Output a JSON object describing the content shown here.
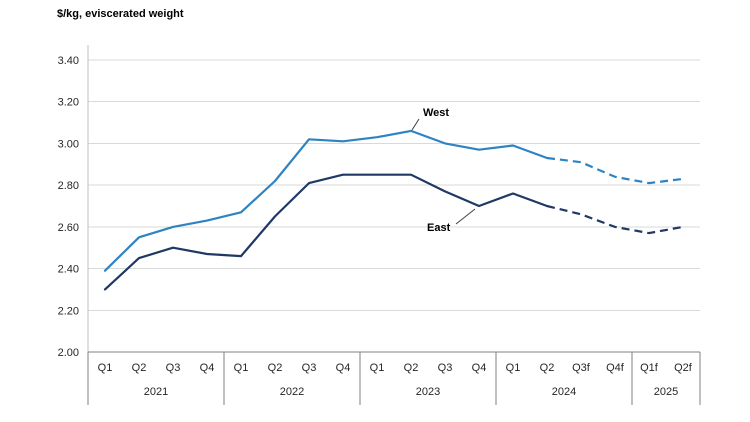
{
  "chart_data": {
    "type": "line",
    "ylabel": "$/kg, eviscerated weight",
    "x": [
      "Q1",
      "Q2",
      "Q3",
      "Q4",
      "Q1",
      "Q2",
      "Q3",
      "Q4",
      "Q1",
      "Q2",
      "Q3",
      "Q4",
      "Q1",
      "Q2",
      "Q3f",
      "Q4f",
      "Q1f",
      "Q2f"
    ],
    "year_groups": [
      {
        "label": "2021",
        "count": 4
      },
      {
        "label": "2022",
        "count": 4
      },
      {
        "label": "2023",
        "count": 4
      },
      {
        "label": "2024",
        "count": 4
      },
      {
        "label": "2025",
        "count": 2
      }
    ],
    "series": [
      {
        "name": "West",
        "color": "#2E83C3",
        "forecast_start_index": 13,
        "values": [
          2.39,
          2.55,
          2.6,
          2.63,
          2.67,
          2.82,
          3.02,
          3.01,
          3.03,
          3.06,
          3.0,
          2.97,
          2.99,
          2.93,
          2.91,
          2.84,
          2.81,
          2.83
        ]
      },
      {
        "name": "East",
        "color": "#1F3864",
        "forecast_start_index": 13,
        "values": [
          2.3,
          2.45,
          2.5,
          2.47,
          2.46,
          2.65,
          2.81,
          2.85,
          2.85,
          2.85,
          2.77,
          2.7,
          2.76,
          2.7,
          2.66,
          2.6,
          2.57,
          2.6
        ]
      }
    ],
    "ylim": [
      2.0,
      3.4
    ],
    "ytick_step": 0.2,
    "ytick_labels": [
      "2.00",
      "2.20",
      "2.40",
      "2.60",
      "2.80",
      "3.00",
      "3.20",
      "3.40"
    ],
    "grid": true,
    "legend_position": "inline-annotations",
    "forecast_style": "dashed"
  },
  "annotations": [
    {
      "label": "West"
    },
    {
      "label": "East"
    }
  ],
  "colors": {
    "grid": "#D9D9D9",
    "axis": "#808080",
    "left_axis": "#BFBFBF",
    "tick_text": "#262626"
  }
}
